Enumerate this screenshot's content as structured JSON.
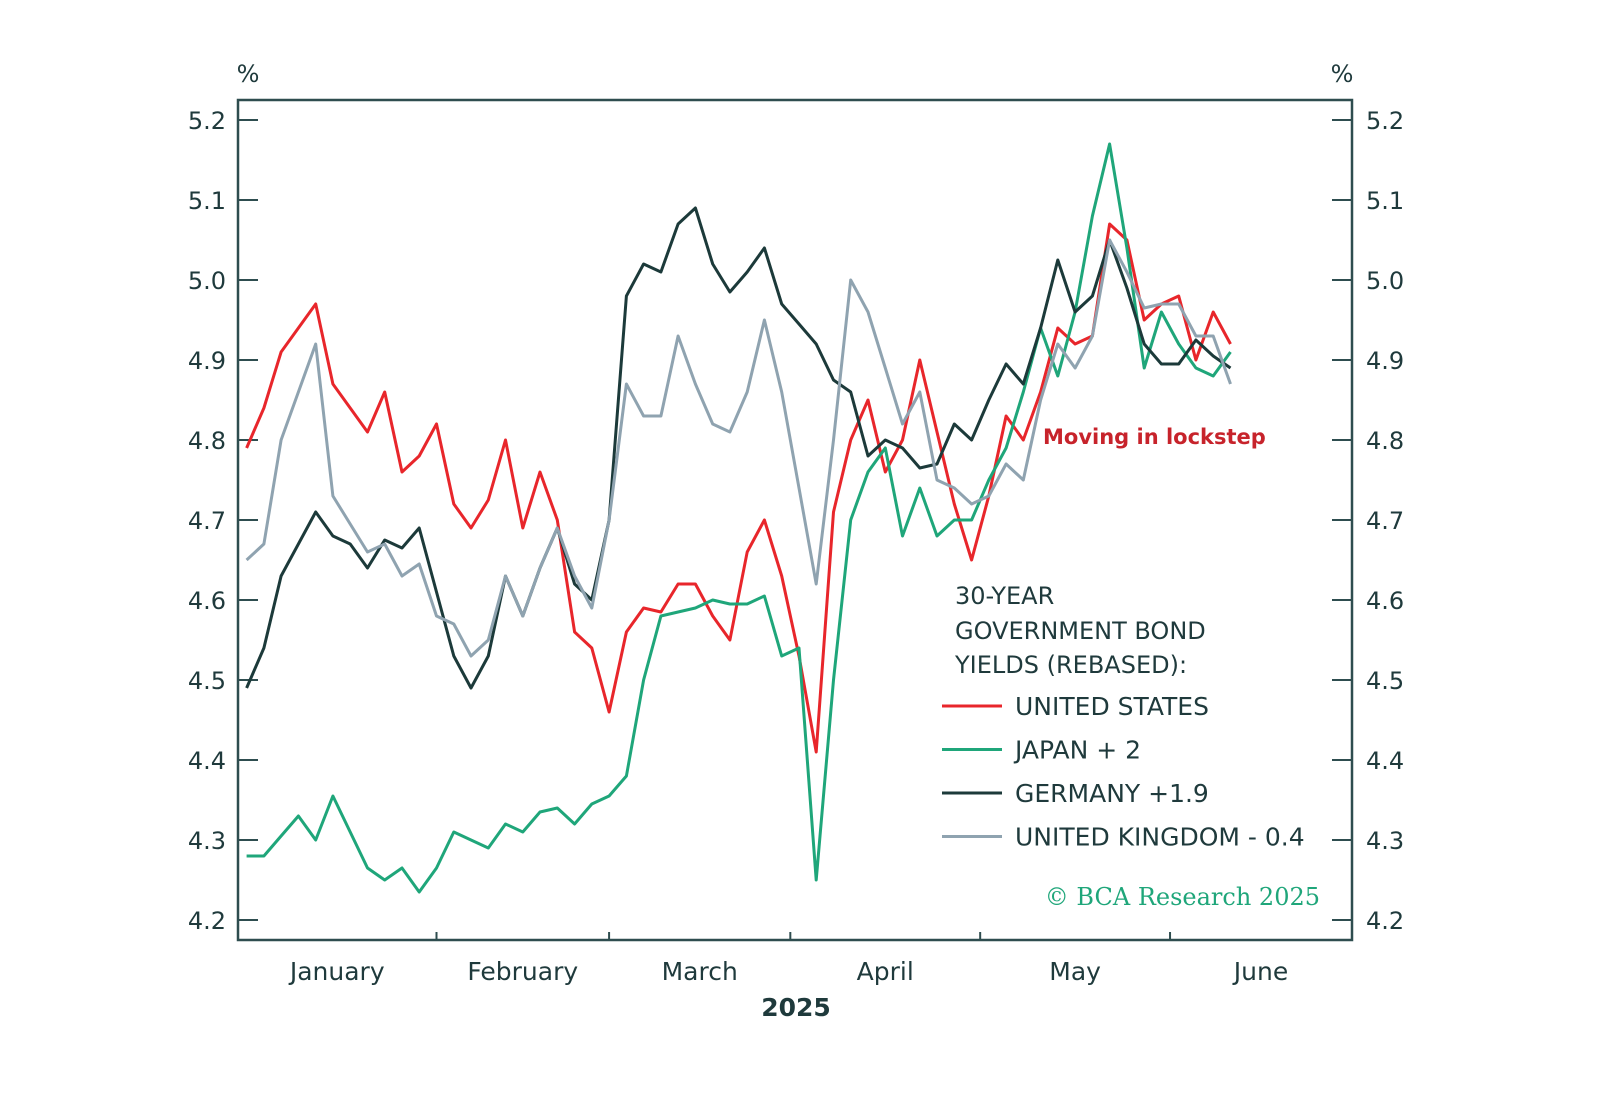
{
  "chart_data": {
    "type": "line",
    "title": "",
    "xlabel": "2025",
    "ylabel_left": "%",
    "ylabel_right": "%",
    "ylim": [
      4.175,
      5.225
    ],
    "yticks": [
      "4.2",
      "4.3",
      "4.4",
      "4.5",
      "4.6",
      "4.7",
      "4.8",
      "4.9",
      "5.0",
      "5.1",
      "5.2"
    ],
    "xticks": [
      "January",
      "February",
      "March",
      "April",
      "May",
      "June"
    ],
    "grid": false,
    "colors": {
      "axis": "#2e4d4f",
      "text": "#1f3a3c",
      "annotation": "#c7232b",
      "copyright": "#1fa67a"
    },
    "legend": {
      "placement": "bottom-right",
      "title_lines": [
        "30-YEAR",
        "GOVERNMENT BOND",
        "YIELDS (REBASED):"
      ]
    },
    "annotation": "Moving in lockstep",
    "copyright": "© BCA Research 2025",
    "x": [
      "2025-01-02",
      "2025-01-06",
      "2025-01-08",
      "2025-01-10",
      "2025-01-14",
      "2025-01-16",
      "2025-01-20",
      "2025-01-22",
      "2025-01-24",
      "2025-01-28",
      "2025-01-30",
      "2025-02-03",
      "2025-02-05",
      "2025-02-07",
      "2025-02-11",
      "2025-02-13",
      "2025-02-17",
      "2025-02-19",
      "2025-02-21",
      "2025-02-25",
      "2025-02-27",
      "2025-03-03",
      "2025-03-05",
      "2025-03-07",
      "2025-03-11",
      "2025-03-13",
      "2025-03-17",
      "2025-03-19",
      "2025-03-21",
      "2025-03-25",
      "2025-03-27",
      "2025-03-31",
      "2025-04-02",
      "2025-04-04",
      "2025-04-08",
      "2025-04-10",
      "2025-04-14",
      "2025-04-16",
      "2025-04-18",
      "2025-04-22",
      "2025-04-24",
      "2025-04-28",
      "2025-04-30",
      "2025-05-02",
      "2025-05-06",
      "2025-05-08",
      "2025-05-12",
      "2025-05-14",
      "2025-05-16",
      "2025-05-20",
      "2025-05-22",
      "2025-05-26",
      "2025-05-28",
      "2025-05-30",
      "2025-06-03",
      "2025-06-05",
      "2025-06-09",
      "2025-06-11"
    ],
    "series": [
      {
        "name": "UNITED STATES",
        "color": "#e8262b",
        "values": [
          4.79,
          4.84,
          4.91,
          4.94,
          4.97,
          4.87,
          4.84,
          4.81,
          4.86,
          4.76,
          4.78,
          4.82,
          4.72,
          4.69,
          4.725,
          4.8,
          4.69,
          4.76,
          4.7,
          4.56,
          4.54,
          4.46,
          4.56,
          4.59,
          4.585,
          4.62,
          4.62,
          4.58,
          4.55,
          4.66,
          4.7,
          4.63,
          4.53,
          4.41,
          4.71,
          4.8,
          4.85,
          4.76,
          4.8,
          4.9,
          4.81,
          4.72,
          4.65,
          4.73,
          4.83,
          4.8,
          4.86,
          4.94,
          4.92,
          4.93,
          5.07,
          5.05,
          4.95,
          4.97,
          4.98,
          4.9,
          4.96,
          4.92
        ]
      },
      {
        "name": "JAPAN + 2",
        "color": "#1fa67a",
        "values": [
          4.28,
          4.28,
          4.305,
          4.33,
          4.3,
          4.355,
          4.31,
          4.265,
          4.25,
          4.265,
          4.235,
          4.265,
          4.31,
          4.3,
          4.29,
          4.32,
          4.31,
          4.335,
          4.34,
          4.32,
          4.345,
          4.355,
          4.38,
          4.5,
          4.58,
          4.585,
          4.59,
          4.6,
          4.595,
          4.595,
          4.605,
          4.53,
          4.54,
          4.25,
          4.5,
          4.7,
          4.76,
          4.79,
          4.68,
          4.74,
          4.68,
          4.7,
          4.7,
          4.75,
          4.79,
          4.86,
          4.94,
          4.88,
          4.96,
          5.08,
          5.17,
          5.04,
          4.89,
          4.96,
          4.92,
          4.89,
          4.88,
          4.91
        ]
      },
      {
        "name": "GERMANY +1.9",
        "color": "#1c3a3a",
        "values": [
          4.49,
          4.54,
          4.63,
          4.67,
          4.71,
          4.68,
          4.67,
          4.64,
          4.675,
          4.665,
          4.69,
          4.61,
          4.53,
          4.49,
          4.53,
          4.63,
          4.58,
          4.64,
          4.69,
          4.62,
          4.6,
          4.7,
          4.98,
          5.02,
          5.01,
          5.07,
          5.09,
          5.02,
          4.985,
          5.01,
          5.04,
          4.97,
          4.945,
          4.92,
          4.875,
          4.86,
          4.78,
          4.8,
          4.79,
          4.765,
          4.77,
          4.82,
          4.8,
          4.85,
          4.895,
          4.87,
          4.94,
          5.025,
          4.96,
          4.98,
          5.05,
          4.99,
          4.92,
          4.895,
          4.895,
          4.925,
          4.905,
          4.89
        ]
      },
      {
        "name": "UNITED KINGDOM - 0.4",
        "color": "#8fa3b0",
        "values": [
          4.65,
          4.67,
          4.8,
          4.86,
          4.92,
          4.73,
          4.695,
          4.66,
          4.67,
          4.63,
          4.645,
          4.58,
          4.57,
          4.53,
          4.55,
          4.63,
          4.58,
          4.64,
          4.69,
          4.63,
          4.59,
          4.7,
          4.87,
          4.83,
          4.83,
          4.93,
          4.87,
          4.82,
          4.81,
          4.86,
          4.95,
          4.86,
          4.74,
          4.62,
          4.8,
          5.0,
          4.96,
          4.89,
          4.82,
          4.86,
          4.75,
          4.74,
          4.72,
          4.73,
          4.77,
          4.75,
          4.85,
          4.92,
          4.89,
          4.93,
          5.05,
          5.01,
          4.965,
          4.97,
          4.97,
          4.93,
          4.93,
          4.87
        ]
      }
    ]
  }
}
